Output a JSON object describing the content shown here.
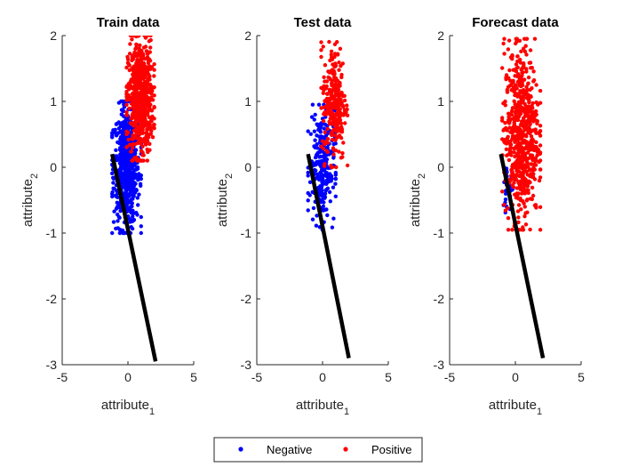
{
  "legend": {
    "items": [
      {
        "label": "Negative",
        "color": "#0000ff"
      },
      {
        "label": "Positive",
        "color": "#ff0000"
      }
    ]
  },
  "chart_data": [
    {
      "type": "scatter",
      "title": "Train data",
      "xlabel": "attribute",
      "xlabel_subscript": "1",
      "ylabel": "attribute",
      "ylabel_subscript": "2",
      "xlim": [
        -5,
        5
      ],
      "ylim": [
        -3,
        2
      ],
      "xticks": [
        "-5",
        "0",
        "5"
      ],
      "yticks": [
        "-3",
        "-2",
        "-1",
        "0",
        "1",
        "2"
      ],
      "grid": false,
      "series": [
        {
          "name": "Negative",
          "color": "#0000ff",
          "cluster": {
            "x_range": [
              -1.2,
              1.0
            ],
            "y_range": [
              -1.0,
              1.0
            ],
            "count": 650
          }
        },
        {
          "name": "Positive",
          "color": "#ff0000",
          "cluster": {
            "x_range": [
              -0.1,
              2.0
            ],
            "y_range": [
              0.1,
              2.0
            ],
            "count": 650
          }
        }
      ],
      "boundary_line": {
        "color": "#000000",
        "points": [
          [
            -1.2,
            0.2
          ],
          [
            2.1,
            -2.95
          ]
        ]
      }
    },
    {
      "type": "scatter",
      "title": "Test data",
      "xlabel": "attribute",
      "xlabel_subscript": "1",
      "ylabel": "attribute",
      "ylabel_subscript": "2",
      "xlim": [
        -5,
        5
      ],
      "ylim": [
        -3,
        2
      ],
      "xticks": [
        "-5",
        "0",
        "5"
      ],
      "yticks": [
        "-3",
        "-2",
        "-1",
        "0",
        "1",
        "2"
      ],
      "grid": false,
      "series": [
        {
          "name": "Negative",
          "color": "#0000ff",
          "cluster": {
            "x_range": [
              -1.1,
              1.0
            ],
            "y_range": [
              -0.95,
              0.95
            ],
            "count": 260
          }
        },
        {
          "name": "Positive",
          "color": "#ff0000",
          "cluster": {
            "x_range": [
              -0.1,
              1.9
            ],
            "y_range": [
              0.0,
              1.95
            ],
            "count": 260
          }
        }
      ],
      "boundary_line": {
        "color": "#000000",
        "points": [
          [
            -1.1,
            0.2
          ],
          [
            2.0,
            -2.9
          ]
        ]
      }
    },
    {
      "type": "scatter",
      "title": "Forecast data",
      "xlabel": "attribute",
      "xlabel_subscript": "1",
      "ylabel": "attribute",
      "ylabel_subscript": "2",
      "xlim": [
        -5,
        5
      ],
      "ylim": [
        -3,
        2
      ],
      "xticks": [
        "-5",
        "0",
        "5"
      ],
      "yticks": [
        "-3",
        "-2",
        "-1",
        "0",
        "1",
        "2"
      ],
      "grid": false,
      "series": [
        {
          "name": "Negative",
          "color": "#0000ff",
          "cluster": {
            "x_range": [
              -1.0,
              -0.1
            ],
            "y_range": [
              -0.7,
              0.1
            ],
            "count": 30
          }
        },
        {
          "name": "Positive",
          "color": "#ff0000",
          "cluster": {
            "x_range": [
              -1.0,
              1.9
            ],
            "y_range": [
              -0.95,
              1.95
            ],
            "count": 650
          }
        }
      ],
      "boundary_line": {
        "color": "#000000",
        "points": [
          [
            -1.1,
            0.2
          ],
          [
            2.1,
            -2.9
          ]
        ]
      }
    }
  ]
}
